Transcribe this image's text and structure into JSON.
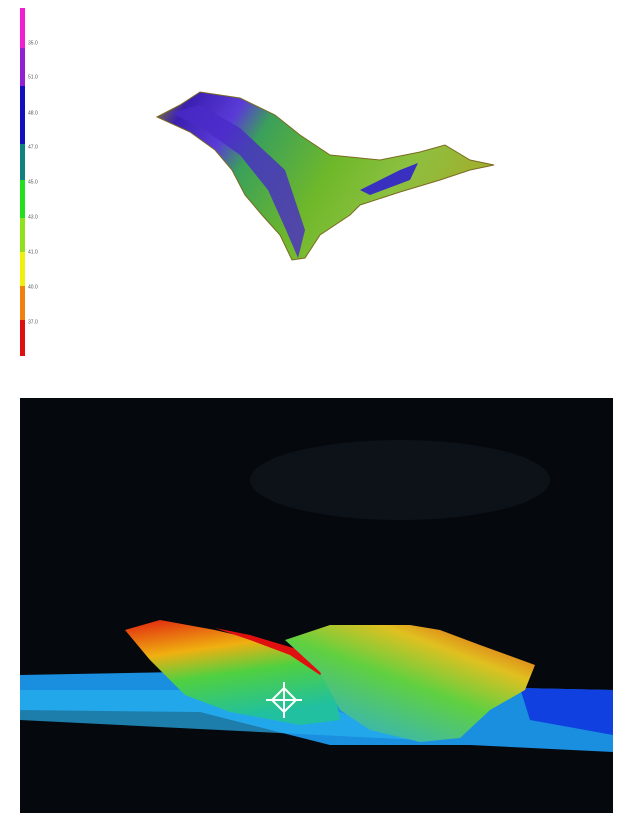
{
  "colorbar": {
    "labels": [
      "35.0",
      "51.0",
      "48.0",
      "47.0",
      "45.0",
      "43.0",
      "41.0",
      "40.0",
      "37.0"
    ]
  }
}
